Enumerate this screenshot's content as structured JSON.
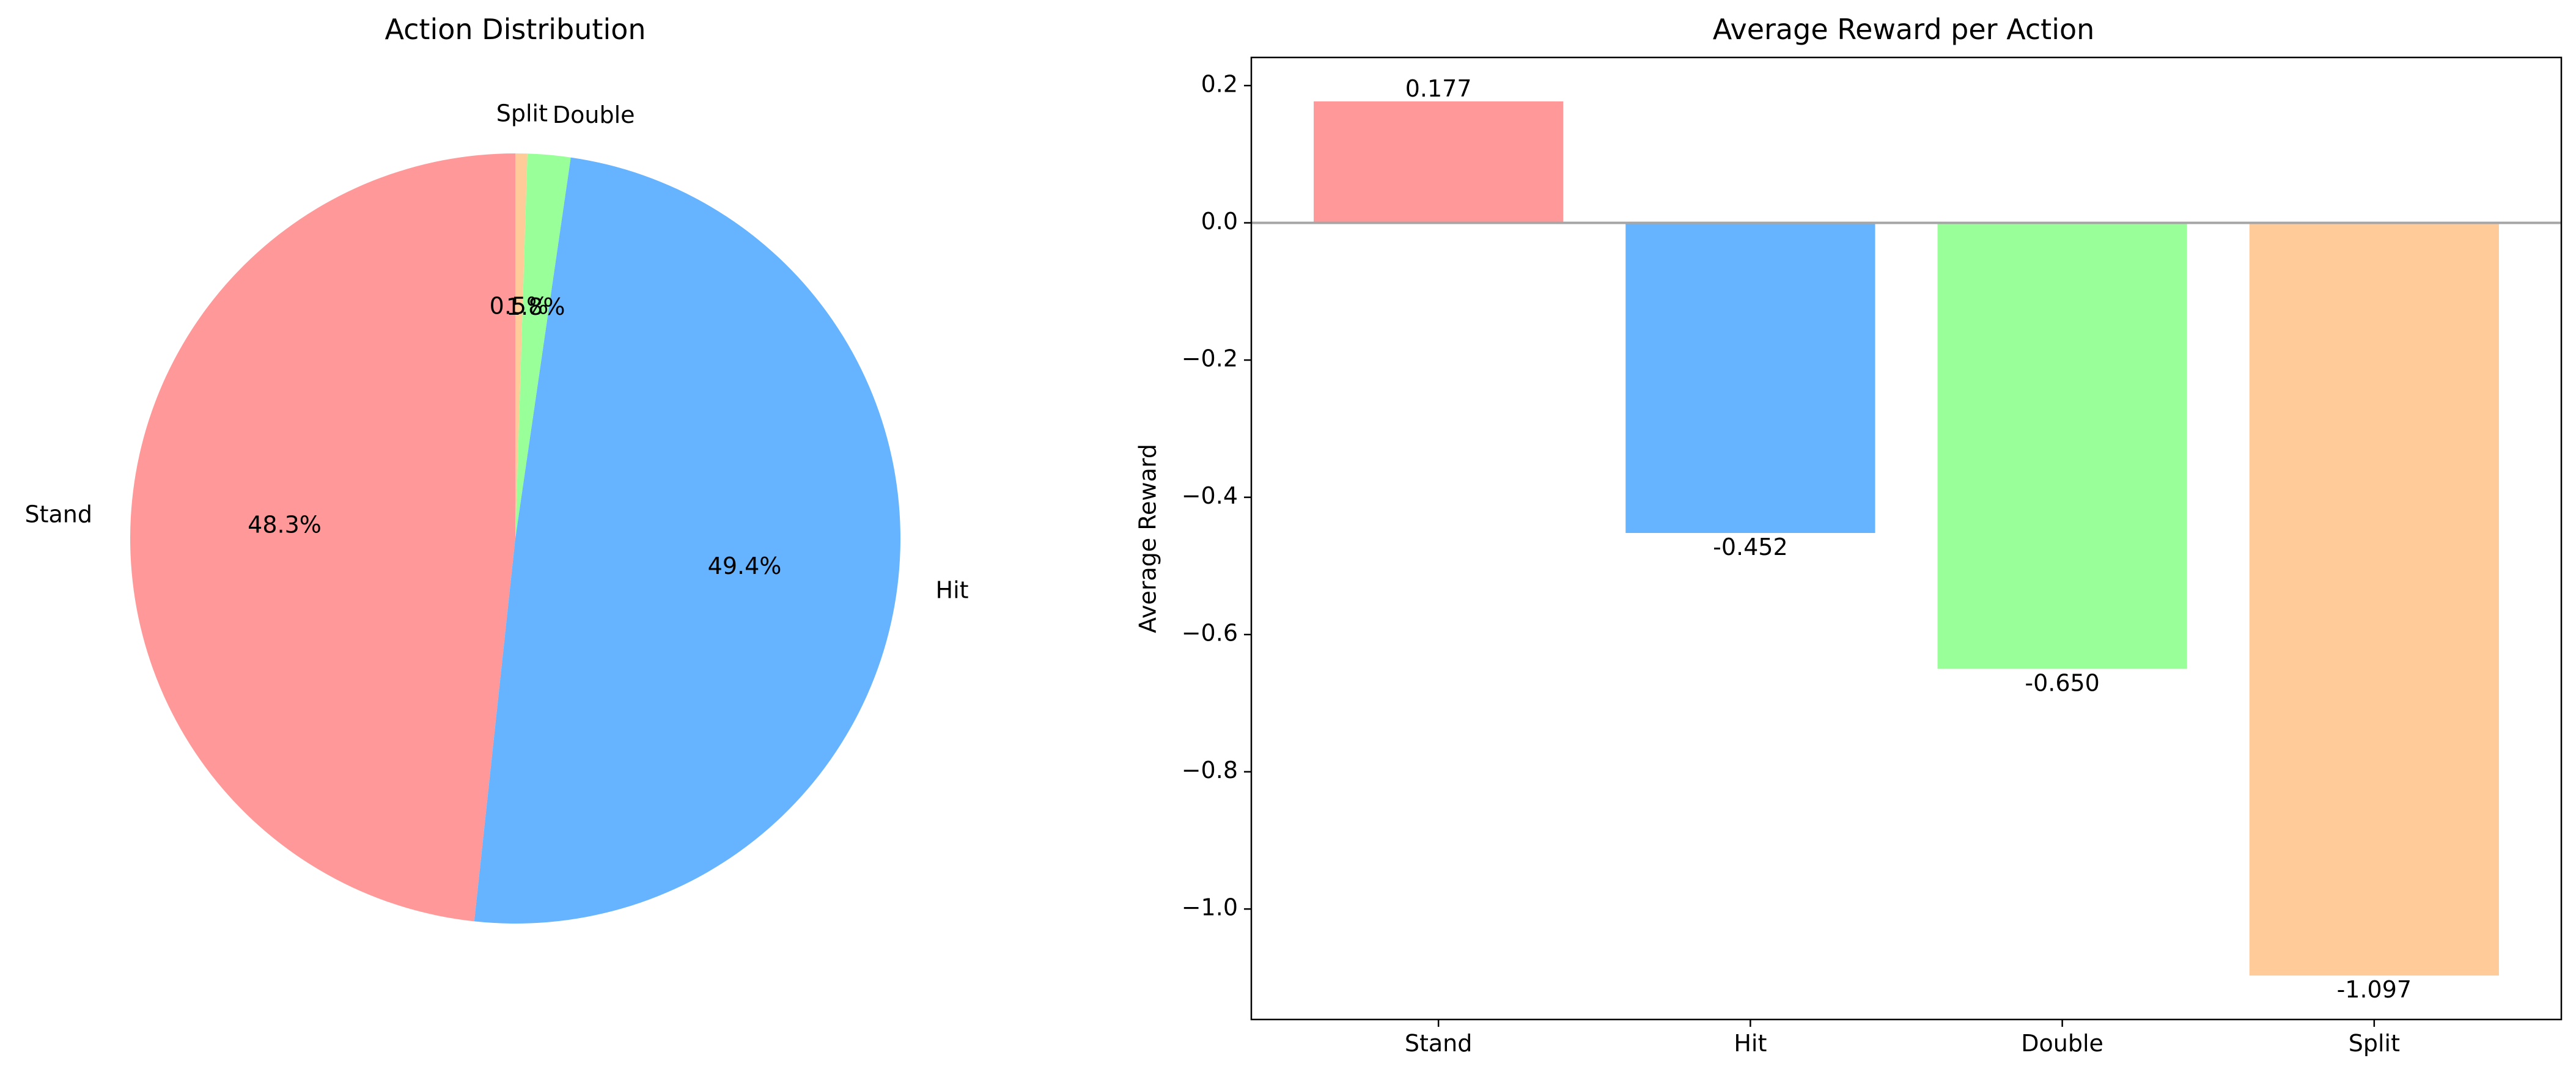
{
  "colors": {
    "background": "#ffffff",
    "axis": "#000000",
    "zero_line": "#a6a6a6"
  },
  "chart_data": [
    {
      "type": "pie",
      "title": "Action Distribution",
      "start_angle_deg": 90,
      "direction": "counterclockwise",
      "slices": [
        {
          "label": "Stand",
          "value": 48.3,
          "pct_label": "48.3%",
          "color": "#ff9999"
        },
        {
          "label": "Hit",
          "value": 49.4,
          "pct_label": "49.4%",
          "color": "#66b3ff"
        },
        {
          "label": "Double",
          "value": 1.8,
          "pct_label": "1.8%",
          "color": "#99ff99"
        },
        {
          "label": "Split",
          "value": 0.5,
          "pct_label": "0.5%",
          "color": "#ffcc99"
        }
      ]
    },
    {
      "type": "bar",
      "title": "Average Reward per Action",
      "xlabel": "",
      "ylabel": "Average Reward",
      "categories": [
        "Stand",
        "Hit",
        "Double",
        "Split"
      ],
      "values": [
        0.177,
        -0.452,
        -0.65,
        -1.097
      ],
      "value_labels": [
        "0.177",
        "-0.452",
        "-0.650",
        "-1.097"
      ],
      "colors": [
        "#ff9999",
        "#66b3ff",
        "#99ff99",
        "#ffcc99"
      ],
      "ylim": [
        -1.161,
        0.241
      ],
      "yticks": [
        0.2,
        0.0,
        -0.2,
        -0.4,
        -0.6,
        -0.8,
        -1.0
      ],
      "ytick_labels": [
        "0.2",
        "0.0",
        "−0.2",
        "−0.4",
        "−0.6",
        "−0.8",
        "−1.0"
      ],
      "zero_line": true,
      "grid": false
    }
  ]
}
